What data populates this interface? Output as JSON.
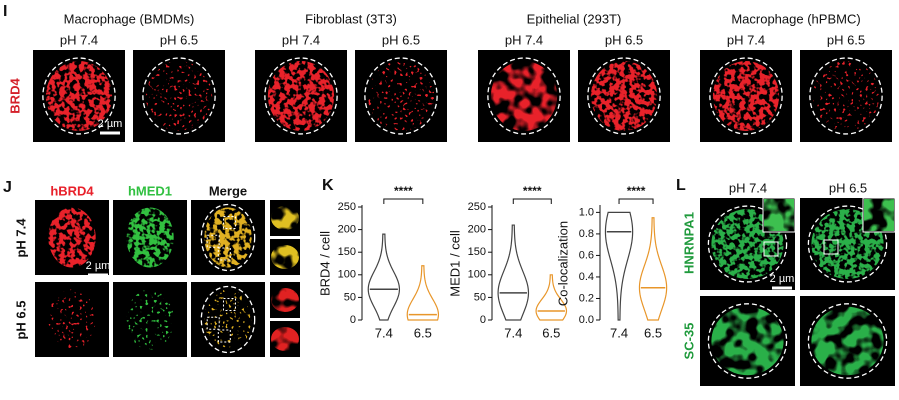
{
  "panels": {
    "I": {
      "label": "I",
      "stain": "BRD4",
      "scale_bar": "2 µm",
      "groups": [
        {
          "title": "Macrophage (BMDMs)",
          "conditions": [
            "pH 7.4",
            "pH 6.5"
          ]
        },
        {
          "title": "Fibroblast (3T3)",
          "conditions": [
            "pH 7.4",
            "pH 6.5"
          ]
        },
        {
          "title": "Epithelial (293T)",
          "conditions": [
            "pH 7.4",
            "pH 6.5"
          ]
        },
        {
          "title": "Macrophage (hPBMC)",
          "conditions": [
            "pH 7.4",
            "pH 6.5"
          ]
        }
      ]
    },
    "J": {
      "label": "J",
      "channels": [
        "hBRD4",
        "hMED1",
        "Merge"
      ],
      "rows": [
        "pH 7.4",
        "pH 6.5"
      ],
      "scale_bar": "2 µm"
    },
    "K": {
      "label": "K"
    },
    "L": {
      "label": "L",
      "conditions": [
        "pH 7.4",
        "pH 6.5"
      ],
      "stains": [
        "HNRNPA1",
        "SC-35"
      ],
      "scale_bar": "2 µm"
    }
  },
  "chart_data": [
    {
      "type": "violin",
      "ylabel": "BRD4 / cell",
      "categories": [
        "7.4",
        "6.5"
      ],
      "colors": [
        "#444444",
        "#e8962a"
      ],
      "values": [
        68,
        12
      ],
      "max": [
        190,
        120
      ],
      "ylim": [
        0,
        250
      ],
      "yticks": [
        0,
        50,
        100,
        150,
        200,
        250
      ],
      "significance": "****"
    },
    {
      "type": "violin",
      "ylabel": "MED1 / cell",
      "categories": [
        "7.4",
        "6.5"
      ],
      "colors": [
        "#444444",
        "#e8962a"
      ],
      "values": [
        60,
        20
      ],
      "max": [
        210,
        100
      ],
      "ylim": [
        0,
        250
      ],
      "yticks": [
        0,
        50,
        100,
        150,
        200,
        250
      ],
      "significance": "****"
    },
    {
      "type": "violin",
      "ylabel": "Co-localization",
      "categories": [
        "7.4",
        "6.5"
      ],
      "colors": [
        "#444444",
        "#e8962a"
      ],
      "values": [
        0.82,
        0.3
      ],
      "max": [
        1.0,
        0.95
      ],
      "ylim": [
        0,
        1.05
      ],
      "yticks": [
        {
          "value": 0,
          "label": "0.0"
        },
        0.2,
        0.4,
        0.6,
        0.8,
        {
          "value": 1,
          "label": "1.0"
        }
      ],
      "significance": "****"
    }
  ]
}
